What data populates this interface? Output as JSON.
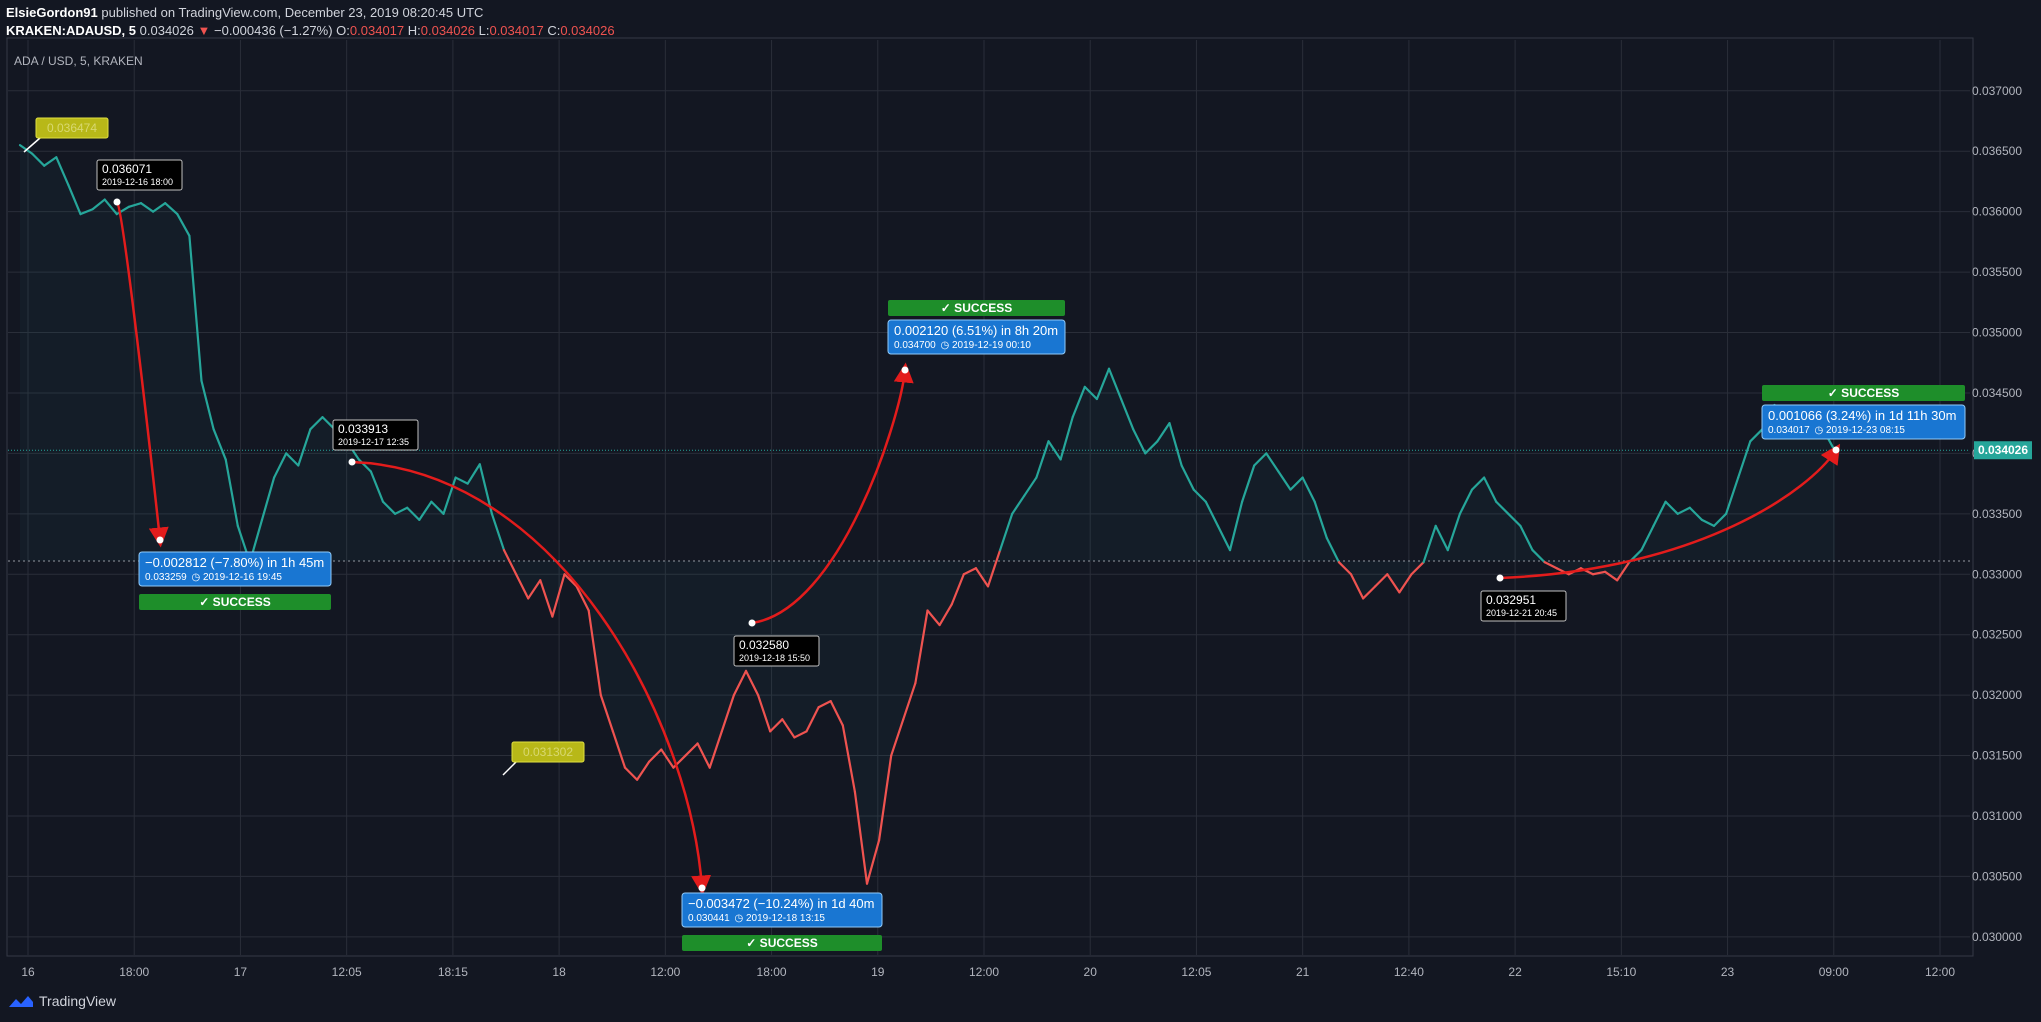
{
  "header": {
    "author": "ElsieGordon91",
    "published_text": "published on TradingView.com, December 23, 2019 08:20:45 UTC",
    "symbol": "KRAKEN:ADAUSD, 5",
    "last": "0.034026",
    "change": "−0.000436 (−1.27%)",
    "o_label": "O:",
    "o": "0.034017",
    "h_label": "H:",
    "h": "0.034026",
    "l_label": "L:",
    "l": "0.034017",
    "c_label": "C:",
    "c": "0.034026"
  },
  "footer": {
    "brand": "TradingView"
  },
  "colors": {
    "up": "#26a69a",
    "down": "#ef5350",
    "background": "#131722",
    "grid": "#2a2e39",
    "success": "#1e8e2a",
    "info": "#1976d2",
    "arrow": "#e31c1c"
  },
  "chart_data": {
    "type": "line",
    "title": "ADA / USD, 5, KRAKEN",
    "ylim": [
      0.02985,
      0.03742
    ],
    "y_ticks": [
      "0.030000",
      "0.030500",
      "0.031000",
      "0.031500",
      "0.032000",
      "0.032500",
      "0.033000",
      "0.033500",
      "0.034000",
      "0.034500",
      "0.035000",
      "0.035500",
      "0.036000",
      "0.036500",
      "0.037000"
    ],
    "x_ticks": [
      "16",
      "18:00",
      "17",
      "12:05",
      "18:15",
      "18",
      "12:00",
      "18:00",
      "19",
      "12:00",
      "20",
      "12:05",
      "21",
      "12:40",
      "22",
      "15:10",
      "23",
      "09:00",
      "12:00"
    ],
    "last_price_label": "0.034026",
    "last_price": 0.034026,
    "reference_level": 0.03311,
    "series": [
      {
        "color_up": "#26a69a",
        "color_down": "#ef5350",
        "values": [
          0.03655,
          0.03648,
          0.03638,
          0.03645,
          0.03622,
          0.03598,
          0.03602,
          0.0361,
          0.03598,
          0.03604,
          0.03607,
          0.036,
          0.03607,
          0.03598,
          0.0358,
          0.0346,
          0.0342,
          0.03395,
          0.0334,
          0.0331,
          0.03345,
          0.0338,
          0.034,
          0.0339,
          0.0342,
          0.0343,
          0.0342,
          0.0341,
          0.03395,
          0.03385,
          0.0336,
          0.0335,
          0.03355,
          0.03345,
          0.0336,
          0.0335,
          0.0338,
          0.03375,
          0.03391,
          0.0335,
          0.0332,
          0.033,
          0.0328,
          0.03295,
          0.03265,
          0.033,
          0.0329,
          0.0327,
          0.032,
          0.0317,
          0.0314,
          0.0313,
          0.03145,
          0.03155,
          0.0314,
          0.0315,
          0.0316,
          0.0314,
          0.0317,
          0.032,
          0.0322,
          0.032,
          0.0317,
          0.0318,
          0.03165,
          0.0317,
          0.0319,
          0.03195,
          0.03175,
          0.0312,
          0.03044,
          0.0308,
          0.0315,
          0.0318,
          0.0321,
          0.0327,
          0.03258,
          0.03275,
          0.033,
          0.03305,
          0.0329,
          0.0332,
          0.0335,
          0.03365,
          0.0338,
          0.0341,
          0.03395,
          0.0343,
          0.03455,
          0.03445,
          0.0347,
          0.03445,
          0.0342,
          0.034,
          0.0341,
          0.03425,
          0.0339,
          0.0337,
          0.0336,
          0.0334,
          0.0332,
          0.0336,
          0.0339,
          0.034,
          0.03385,
          0.0337,
          0.0338,
          0.0336,
          0.0333,
          0.0331,
          0.033,
          0.0328,
          0.0329,
          0.033,
          0.03285,
          0.033,
          0.0331,
          0.0334,
          0.0332,
          0.0335,
          0.0337,
          0.0338,
          0.0336,
          0.0335,
          0.0334,
          0.0332,
          0.0331,
          0.03305,
          0.033,
          0.03305,
          0.033,
          0.03302,
          0.03295,
          0.0331,
          0.0332,
          0.0334,
          0.0336,
          0.0335,
          0.03355,
          0.03345,
          0.0334,
          0.0335,
          0.0338,
          0.0341,
          0.0342,
          0.0344,
          0.0343,
          0.03425,
          0.03435,
          0.0342,
          0.03402
        ]
      }
    ],
    "price_labels": [
      {
        "text": "0.036474",
        "style": "yellow"
      },
      {
        "text": "0.031302",
        "style": "yellow"
      }
    ],
    "point_labels": [
      {
        "price": "0.036071",
        "date": "2019-12-16 18:00"
      },
      {
        "price": "0.033913",
        "date": "2019-12-17 12:35"
      },
      {
        "price": "0.032580",
        "date": "2019-12-18 15:50"
      },
      {
        "price": "0.032951",
        "date": "2019-12-21 20:45"
      }
    ],
    "trade_boxes": [
      {
        "line1": "−0.002812 (−7.80%) in 1h 45m",
        "line2": "0.033259  ◷ 2019-12-16  19:45",
        "status": "SUCCESS"
      },
      {
        "line1": "−0.003472 (−10.24%) in 1d 40m",
        "line2": "0.030441  ◷ 2019-12-18  13:15",
        "status": "SUCCESS"
      },
      {
        "line1": "0.002120 (6.51%) in 8h 20m",
        "line2": "0.034700  ◷ 2019-12-19  00:10",
        "status": "SUCCESS"
      },
      {
        "line1": "0.001066 (3.24%) in 1d 11h 30m",
        "line2": "0.034017  ◷ 2019-12-23  08:15",
        "status": "SUCCESS"
      }
    ]
  }
}
